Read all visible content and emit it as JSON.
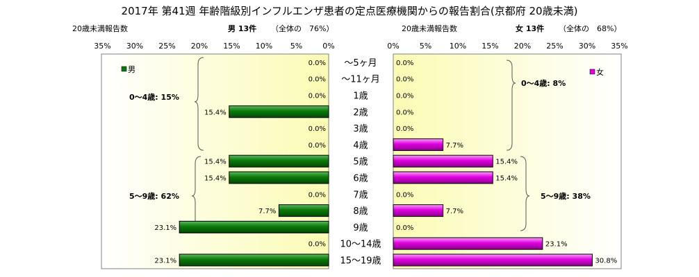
{
  "chart_data": {
    "type": "bar",
    "title": "2017年 第41週 年齢階級別インフルエンザ患者の定点医療機関からの報告割合(京都府 20歳未満)",
    "categories": [
      "～5ヶ月",
      "～11ヶ月",
      "1歳",
      "2歳",
      "3歳",
      "4歳",
      "5歳",
      "6歳",
      "7歳",
      "8歳",
      "9歳",
      "10～14歳",
      "15～19歳"
    ],
    "xlim": [
      0,
      35
    ],
    "xticks": [
      "35%",
      "30%",
      "25%",
      "20%",
      "15%",
      "10%",
      "5%",
      "0%"
    ],
    "xticks_right": [
      "0%",
      "5%",
      "10%",
      "15%",
      "20%",
      "25%",
      "30%",
      "35%"
    ],
    "series": [
      {
        "name": "男",
        "color": "#0a7a0a",
        "header_left": "20歳未満報告数",
        "header_count": "男 13件",
        "header_share": "（全体の　76%）",
        "values": [
          0,
          0,
          0,
          15.4,
          0,
          0,
          15.4,
          15.4,
          0,
          7.7,
          23.1,
          0,
          23.1
        ],
        "labels": [
          "0.0%",
          "0.0%",
          "0.0%",
          "15.4%",
          "0.0%",
          "0.0%",
          "15.4%",
          "15.4%",
          "0.0%",
          "7.7%",
          "23.1%",
          "0.0%",
          "23.1%"
        ],
        "groups": [
          "0～4歳: 15%",
          "5～9歳: 62%"
        ]
      },
      {
        "name": "女",
        "color": "#e000e0",
        "header_left": "20歳未満報告数",
        "header_count": "女 13件",
        "header_share": "（全体の　68%）",
        "values": [
          0,
          0,
          0,
          0,
          0,
          7.7,
          15.4,
          15.4,
          0,
          7.7,
          0,
          23.1,
          30.8
        ],
        "labels": [
          "0.0%",
          "0.0%",
          "0.0%",
          "0.0%",
          "0.0%",
          "7.7%",
          "15.4%",
          "15.4%",
          "0.0%",
          "7.7%",
          "0.0%",
          "23.1%",
          "30.8%"
        ],
        "groups": [
          "0～4歳: 8%",
          "5～9歳: 38%"
        ]
      }
    ]
  }
}
